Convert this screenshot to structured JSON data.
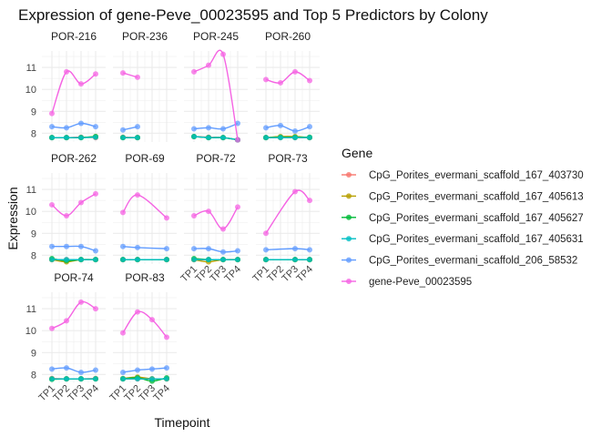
{
  "chart_data": {
    "type": "line",
    "title": "Expression of gene-Peve_00023595 and Top 5 Predictors by Colony",
    "xlabel": "Timepoint",
    "ylabel": "Expression",
    "categories": [
      "TP1",
      "TP2",
      "TP3",
      "TP4"
    ],
    "ylim": [
      7.6,
      11.75
    ],
    "yticks": [
      8,
      9,
      10,
      11
    ],
    "grid": true,
    "legend": {
      "title": "Gene",
      "placement": "right"
    },
    "series_names": [
      "CpG_Porites_evermani_scaffold_167_403730",
      "CpG_Porites_evermani_scaffold_167_405613",
      "CpG_Porites_evermani_scaffold_167_405627",
      "CpG_Porites_evermani_scaffold_167_405631",
      "CpG_Porites_evermani_scaffold_206_58532",
      "gene-Peve_00023595"
    ],
    "colors": [
      "#F8766D",
      "#B79F00",
      "#00BA38",
      "#00BFC4",
      "#619CFF",
      "#F564E3"
    ],
    "panels": [
      {
        "name": "POR-216",
        "values": [
          [
            7.8,
            7.8,
            7.82,
            7.8
          ],
          [
            7.8,
            7.8,
            7.8,
            7.85
          ],
          [
            7.8,
            7.8,
            7.8,
            7.85
          ],
          [
            7.8,
            7.8,
            7.8,
            7.82
          ],
          [
            8.3,
            8.25,
            8.45,
            8.3
          ],
          [
            8.9,
            10.8,
            10.25,
            10.7
          ]
        ]
      },
      {
        "name": "POR-236",
        "values": [
          [
            7.82,
            7.8,
            null,
            null
          ],
          [
            7.8,
            7.8,
            null,
            null
          ],
          [
            7.8,
            7.8,
            null,
            null
          ],
          [
            7.8,
            7.8,
            null,
            null
          ],
          [
            8.15,
            8.3,
            null,
            null
          ],
          [
            10.75,
            10.55,
            null,
            null
          ]
        ]
      },
      {
        "name": "POR-245",
        "values": [
          [
            7.85,
            7.82,
            7.8,
            7.7
          ],
          [
            7.85,
            7.8,
            7.8,
            7.7
          ],
          [
            7.85,
            7.8,
            7.8,
            7.7
          ],
          [
            7.85,
            7.8,
            7.8,
            7.7
          ],
          [
            8.2,
            8.25,
            8.2,
            8.45
          ],
          [
            10.8,
            11.1,
            11.6,
            7.7
          ]
        ]
      },
      {
        "name": "POR-260",
        "values": [
          [
            7.8,
            7.8,
            7.8,
            7.8
          ],
          [
            7.8,
            7.85,
            7.85,
            7.8
          ],
          [
            7.8,
            7.82,
            7.82,
            7.82
          ],
          [
            7.8,
            7.8,
            7.8,
            7.8
          ],
          [
            8.25,
            8.35,
            8.1,
            8.3
          ],
          [
            10.45,
            10.3,
            10.8,
            10.4
          ]
        ]
      },
      {
        "name": "POR-262",
        "values": [
          [
            7.8,
            7.8,
            7.8,
            7.8
          ],
          [
            7.8,
            7.7,
            7.8,
            7.8
          ],
          [
            7.85,
            7.75,
            7.8,
            7.8
          ],
          [
            7.8,
            7.8,
            7.8,
            7.8
          ],
          [
            8.4,
            8.4,
            8.4,
            8.2
          ],
          [
            10.3,
            9.8,
            10.4,
            10.8
          ]
        ]
      },
      {
        "name": "POR-69",
        "values": [
          [
            7.8,
            7.8,
            null,
            7.8
          ],
          [
            7.8,
            7.8,
            null,
            7.8
          ],
          [
            7.8,
            7.8,
            null,
            7.8
          ],
          [
            7.8,
            7.8,
            null,
            7.8
          ],
          [
            8.4,
            8.35,
            null,
            8.3
          ],
          [
            9.95,
            10.75,
            null,
            9.7
          ]
        ]
      },
      {
        "name": "POR-72",
        "values": [
          [
            7.8,
            7.8,
            7.8,
            7.8
          ],
          [
            7.8,
            7.7,
            7.8,
            7.8
          ],
          [
            7.85,
            7.8,
            7.8,
            7.8
          ],
          [
            7.8,
            7.8,
            7.8,
            7.8
          ],
          [
            8.3,
            8.3,
            8.15,
            8.2
          ],
          [
            9.8,
            10.0,
            9.2,
            10.2
          ]
        ]
      },
      {
        "name": "POR-73",
        "values": [
          [
            7.8,
            null,
            7.8,
            7.8
          ],
          [
            7.8,
            null,
            7.8,
            7.8
          ],
          [
            7.8,
            null,
            7.8,
            7.8
          ],
          [
            7.8,
            null,
            7.8,
            7.8
          ],
          [
            8.25,
            null,
            8.3,
            8.25
          ],
          [
            9.0,
            null,
            10.9,
            10.5
          ]
        ]
      },
      {
        "name": "POR-74",
        "values": [
          [
            7.82,
            7.8,
            7.8,
            7.82
          ],
          [
            7.8,
            7.8,
            7.8,
            7.8
          ],
          [
            7.78,
            7.8,
            7.8,
            7.8
          ],
          [
            7.8,
            7.8,
            7.8,
            7.8
          ],
          [
            8.25,
            8.3,
            8.1,
            8.2
          ],
          [
            10.1,
            10.45,
            11.3,
            11.0
          ]
        ]
      },
      {
        "name": "POR-83",
        "values": [
          [
            7.8,
            7.8,
            7.8,
            7.8
          ],
          [
            7.82,
            7.88,
            7.8,
            7.8
          ],
          [
            7.8,
            7.85,
            7.7,
            7.85
          ],
          [
            7.8,
            7.8,
            7.8,
            7.8
          ],
          [
            8.1,
            8.2,
            8.25,
            8.3
          ],
          [
            9.9,
            10.85,
            10.5,
            9.7
          ]
        ]
      }
    ]
  }
}
